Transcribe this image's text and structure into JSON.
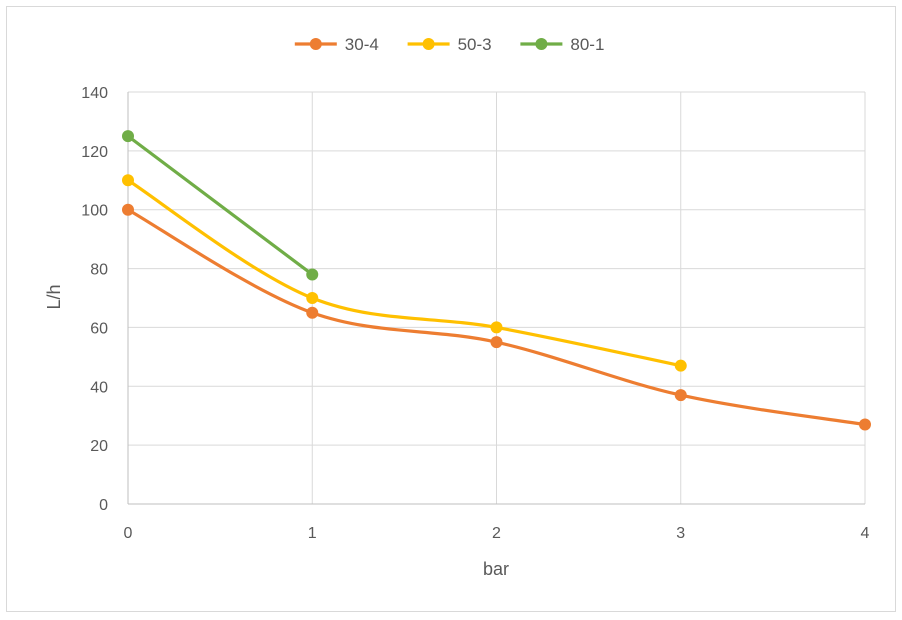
{
  "chart_data": {
    "type": "line",
    "title": "",
    "xlabel": "bar",
    "ylabel": "L/h",
    "x": [
      0,
      1,
      2,
      3,
      4
    ],
    "xlim": [
      0,
      4
    ],
    "ylim": [
      0,
      140
    ],
    "xticks": [
      "0",
      "1",
      "2",
      "3",
      "4"
    ],
    "yticks": [
      "0",
      "20",
      "40",
      "60",
      "80",
      "100",
      "120",
      "140"
    ],
    "grid": true,
    "smooth": true,
    "legend_position": "top",
    "series": [
      {
        "name": "30-4",
        "color": "#ED7D31",
        "points": [
          [
            0,
            100
          ],
          [
            1,
            65
          ],
          [
            2,
            55
          ],
          [
            3,
            37
          ],
          [
            4,
            27
          ]
        ]
      },
      {
        "name": "50-3",
        "color": "#FFC000",
        "points": [
          [
            0,
            110
          ],
          [
            1,
            70
          ],
          [
            2,
            60
          ],
          [
            3,
            47
          ]
        ]
      },
      {
        "name": "80-1",
        "color": "#70AD47",
        "points": [
          [
            0,
            125
          ],
          [
            1,
            78
          ]
        ]
      }
    ]
  }
}
